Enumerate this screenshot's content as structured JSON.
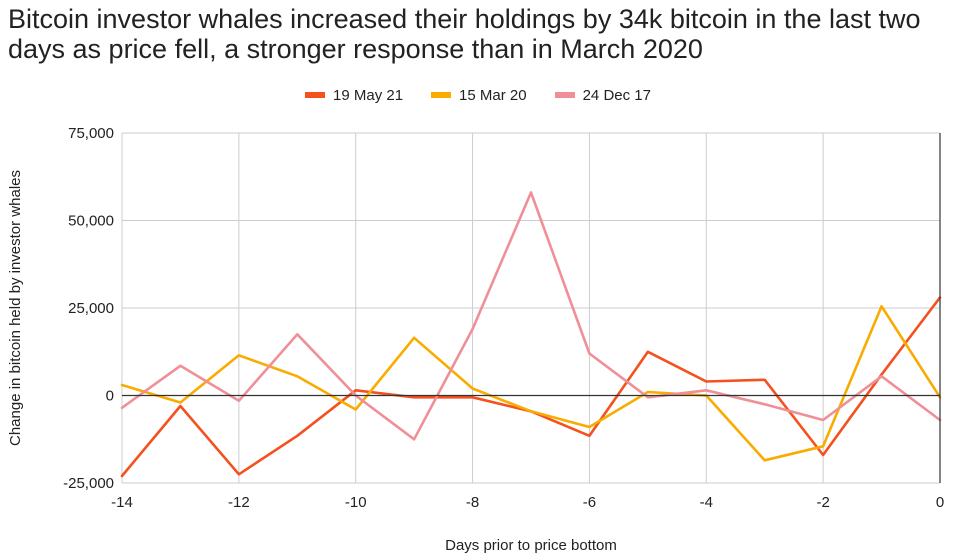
{
  "chart_data": {
    "type": "line",
    "title": "Bitcoin investor whales increased their holdings by 34k bitcoin in the last two days as price fell, a stronger response than in March 2020",
    "xlabel": "Days prior to price bottom",
    "ylabel": "Change in bitcoin held by investor whales",
    "xlim": [
      -14,
      0
    ],
    "ylim": [
      -25000,
      75000
    ],
    "x_ticks": [
      -14,
      -12,
      -10,
      -8,
      -6,
      -4,
      -2,
      0
    ],
    "x_tick_labels": [
      "-14",
      "-12",
      "-10",
      "-8",
      "-6",
      "-4",
      "-2",
      "0"
    ],
    "y_ticks": [
      -25000,
      0,
      25000,
      50000,
      75000
    ],
    "y_tick_labels": [
      "-25,000",
      "0",
      "25,000",
      "50,000",
      "75,000"
    ],
    "grid": true,
    "legend_position": "top",
    "x": [
      -14,
      -13,
      -12,
      -11,
      -10,
      -9,
      -8,
      -7,
      -6,
      -5,
      -4,
      -3,
      -2,
      -1,
      0
    ],
    "series": [
      {
        "name": "19 May 21",
        "color": "#f4511e",
        "values": [
          -23000,
          -3000,
          -22500,
          -11500,
          1500,
          -500,
          -500,
          -4500,
          -11500,
          12500,
          4000,
          4500,
          -17000,
          6000,
          28000
        ]
      },
      {
        "name": "15 Mar 20",
        "color": "#f9ab00",
        "values": [
          3000,
          -2000,
          11500,
          5500,
          -4000,
          16500,
          2000,
          -4500,
          -9000,
          1000,
          0,
          -18500,
          -14500,
          25500,
          -500
        ]
      },
      {
        "name": "24 Dec 17",
        "color": "#ef8f97",
        "values": [
          -3500,
          8500,
          -1500,
          17500,
          0,
          -12500,
          19000,
          58000,
          12000,
          -500,
          1500,
          -2500,
          -7000,
          5500,
          -7000
        ]
      }
    ]
  }
}
